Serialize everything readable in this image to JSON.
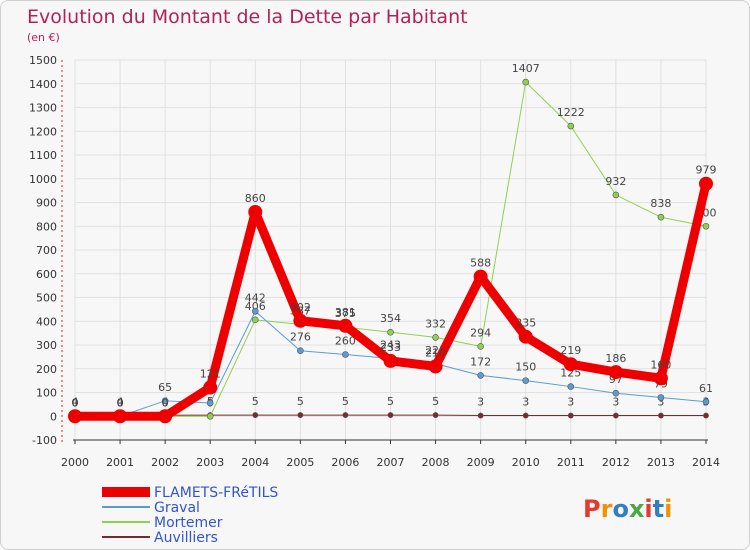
{
  "header": {
    "title": "Evolution du Montant de la Dette par Habitant",
    "unit": "(en €)"
  },
  "logo": {
    "text": "Proxiti",
    "colors": [
      "#e23a2e",
      "#f39200",
      "#2f7fc1",
      "#49a942",
      "#e23a2e",
      "#2f7fc1",
      "#f39200"
    ]
  },
  "chart_data": {
    "type": "line",
    "title": "Evolution du Montant de la Dette par Habitant",
    "subtitle": "(en €)",
    "xlabel": "",
    "ylabel": "",
    "ylim": [
      -100,
      1500
    ],
    "yticks": [
      -100,
      0,
      100,
      200,
      300,
      400,
      500,
      600,
      700,
      800,
      900,
      1000,
      1100,
      1200,
      1300,
      1400,
      1500
    ],
    "x": [
      "2000",
      "2001",
      "2002",
      "2003",
      "2004",
      "2005",
      "2006",
      "2007",
      "2008",
      "2009",
      "2010",
      "2011",
      "2012",
      "2013",
      "2014"
    ],
    "grid": "horizontal",
    "legend": "bottom-left",
    "series": [
      {
        "name": "Auvilliers",
        "color": "#7a2a2a",
        "width": 1,
        "marker": 2.6,
        "values": [
          4,
          4,
          4,
          5,
          5,
          5,
          5,
          5,
          5,
          3,
          3,
          3,
          3,
          3,
          3
        ],
        "labels": [
          "4",
          "4",
          "4",
          "5",
          "5",
          "5",
          "5",
          "5",
          "5",
          "3",
          "3",
          "3",
          "3",
          "3",
          "3"
        ]
      },
      {
        "name": "Mortemer",
        "color": "#8fd14f",
        "width": 1,
        "marker": 3,
        "values": [
          0,
          0,
          0,
          0,
          406,
          387,
          375,
          354,
          332,
          294,
          1407,
          1222,
          932,
          838,
          800
        ],
        "labels": [
          "0",
          "0",
          "0",
          "0",
          "406",
          "387",
          "375",
          "354",
          "332",
          "294",
          "1407",
          "1222",
          "932",
          "838",
          "800"
        ]
      },
      {
        "name": "Graval",
        "color": "#5b9bd5",
        "width": 1,
        "marker": 3,
        "values": [
          0,
          0,
          65,
          56,
          442,
          276,
          260,
          243,
          221,
          172,
          150,
          125,
          97,
          79,
          61
        ],
        "labels": [
          "0",
          "0",
          "65",
          "56",
          "442",
          "276",
          "260",
          "243",
          "221",
          "172",
          "150",
          "125",
          "97",
          "79",
          "61"
        ]
      },
      {
        "name": "FLAMETS-FRéTILS",
        "color": "#ee0000",
        "width": 9,
        "marker": 7,
        "values": [
          0,
          0,
          0,
          121,
          860,
          402,
          381,
          233,
          210,
          588,
          335,
          219,
          186,
          160,
          979
        ],
        "labels": [
          "0",
          "0",
          "0",
          "121",
          "860",
          "402",
          "381",
          "233",
          "210",
          "588",
          "335",
          "219",
          "186",
          "160",
          "979"
        ]
      }
    ]
  }
}
